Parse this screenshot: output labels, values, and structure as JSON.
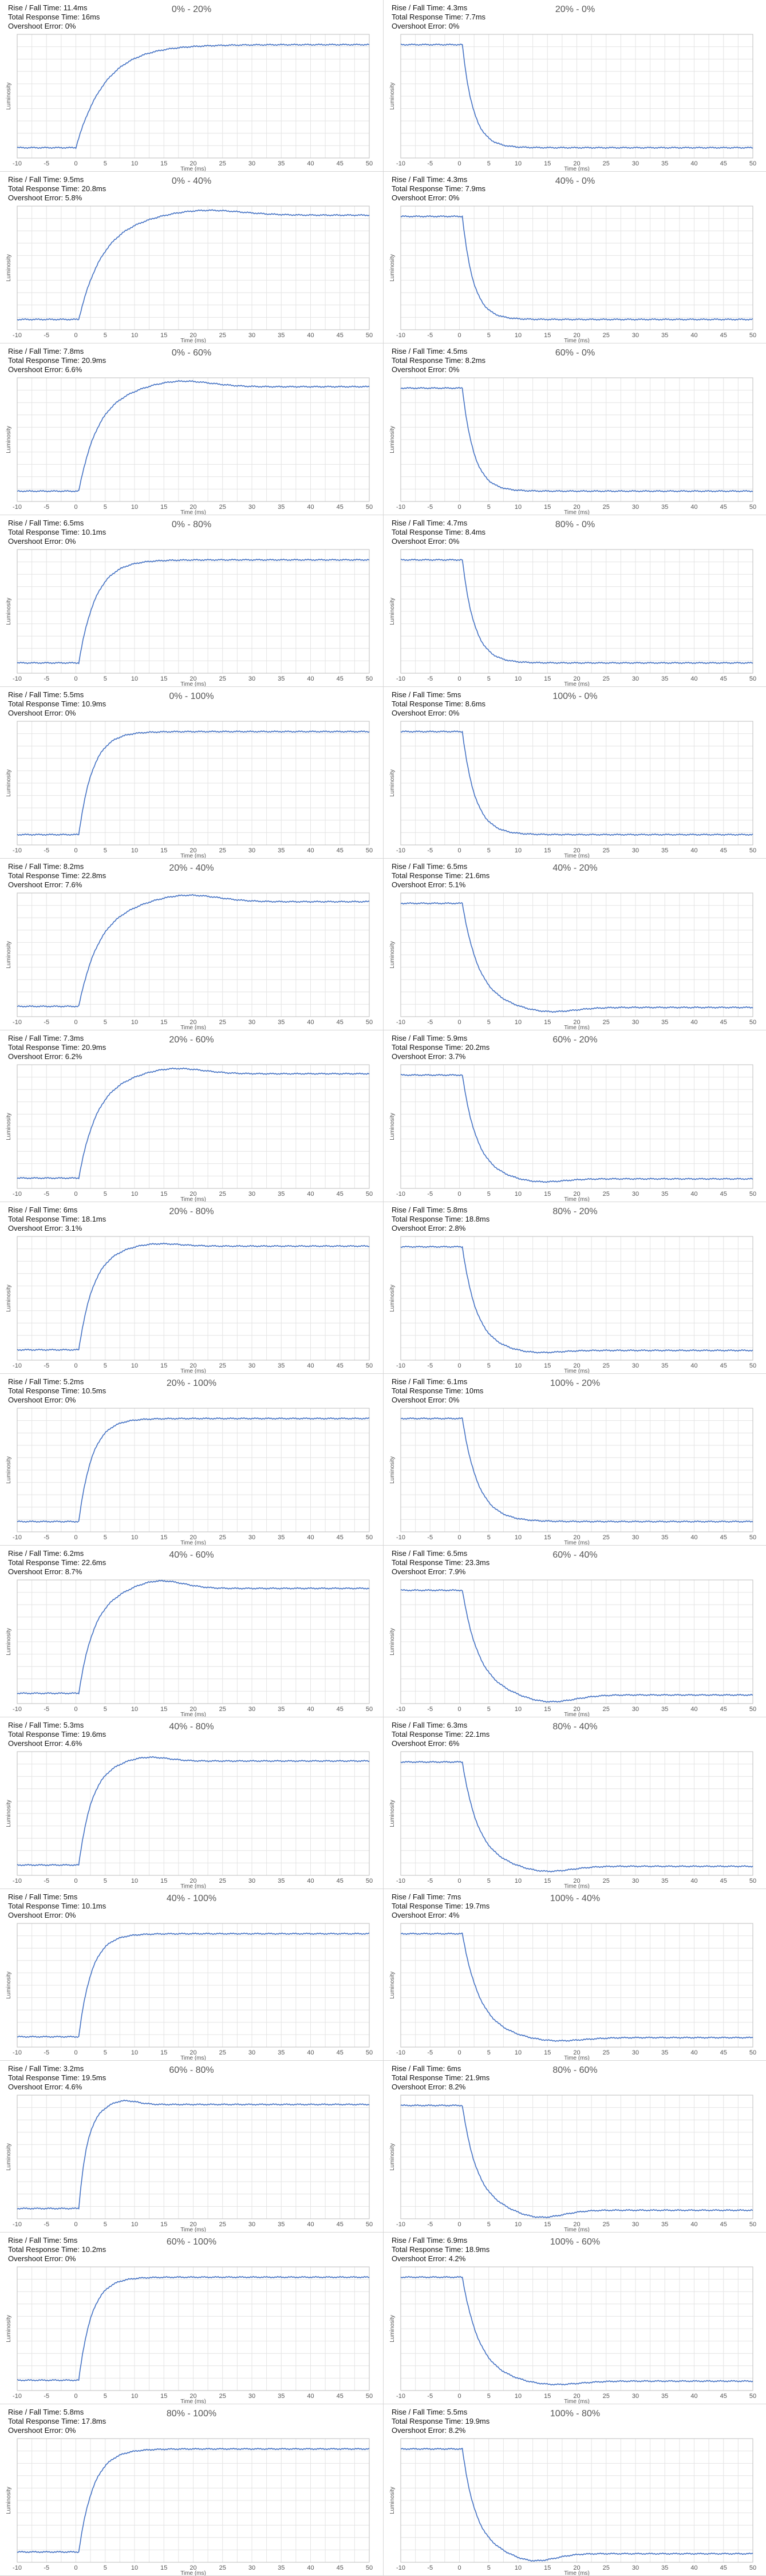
{
  "labels": {
    "rise_prefix": "Rise / Fall Time: ",
    "total_prefix": "Total Response Time: ",
    "overshoot_prefix": "Overshoot Error: "
  },
  "colors": {
    "line": "#4472c4",
    "grid": "#e4e4e4",
    "axis": "#bdbdbd"
  },
  "chart_data": [
    {
      "type": "line",
      "title": "0% - 20%",
      "rise_fall": "11.4ms",
      "total": "16ms",
      "overshoot": "0%",
      "xlabel": "Time (ms)",
      "ylabel": "Luminosity",
      "xlim": [
        -10,
        50
      ],
      "xticks": [
        -10,
        -5,
        0,
        5,
        10,
        15,
        20,
        25,
        30,
        35,
        40,
        45,
        50
      ],
      "y_start": 0.0,
      "y_end": 1.0,
      "tau_ms": 5.0,
      "delay_ms": 0,
      "overshoot_frac": 0.0
    },
    {
      "type": "line",
      "title": "20% - 0%",
      "rise_fall": "4.3ms",
      "total": "7.7ms",
      "overshoot": "0%",
      "xlabel": "Time (ms)",
      "ylabel": "Luminosity",
      "xlim": [
        -10,
        50
      ],
      "xticks": [
        -10,
        -5,
        0,
        5,
        10,
        15,
        20,
        25,
        30,
        35,
        40,
        45,
        50
      ],
      "y_start": 1.0,
      "y_end": 0.0,
      "tau_ms": 1.9,
      "delay_ms": 0.5,
      "overshoot_frac": 0.0
    },
    {
      "type": "line",
      "title": "0% - 40%",
      "rise_fall": "9.5ms",
      "total": "20.8ms",
      "overshoot": "5.8%",
      "xlabel": "Time (ms)",
      "ylabel": "Luminosity",
      "xlim": [
        -10,
        50
      ],
      "xticks": [
        -10,
        -5,
        0,
        5,
        10,
        15,
        20,
        25,
        30,
        35,
        40,
        45,
        50
      ],
      "y_start": 0.0,
      "y_end": 1.0,
      "tau_ms": 4.2,
      "delay_ms": 0.5,
      "overshoot_frac": 0.058
    },
    {
      "type": "line",
      "title": "40% - 0%",
      "rise_fall": "4.3ms",
      "total": "7.9ms",
      "overshoot": "0%",
      "xlabel": "Time (ms)",
      "ylabel": "Luminosity",
      "xlim": [
        -10,
        50
      ],
      "xticks": [
        -10,
        -5,
        0,
        5,
        10,
        15,
        20,
        25,
        30,
        35,
        40,
        45,
        50
      ],
      "y_start": 1.0,
      "y_end": 0.0,
      "tau_ms": 1.9,
      "delay_ms": 0.5,
      "overshoot_frac": 0.0
    },
    {
      "type": "line",
      "title": "0% - 60%",
      "rise_fall": "7.8ms",
      "total": "20.9ms",
      "overshoot": "6.6%",
      "xlabel": "Time (ms)",
      "ylabel": "Luminosity",
      "xlim": [
        -10,
        50
      ],
      "xticks": [
        -10,
        -5,
        0,
        5,
        10,
        15,
        20,
        25,
        30,
        35,
        40,
        45,
        50
      ],
      "y_start": 0.0,
      "y_end": 1.0,
      "tau_ms": 3.4,
      "delay_ms": 0.5,
      "overshoot_frac": 0.066
    },
    {
      "type": "line",
      "title": "60% - 0%",
      "rise_fall": "4.5ms",
      "total": "8.2ms",
      "overshoot": "0%",
      "xlabel": "Time (ms)",
      "ylabel": "Luminosity",
      "xlim": [
        -10,
        50
      ],
      "xticks": [
        -10,
        -5,
        0,
        5,
        10,
        15,
        20,
        25,
        30,
        35,
        40,
        45,
        50
      ],
      "y_start": 1.0,
      "y_end": 0.0,
      "tau_ms": 2.0,
      "delay_ms": 0.5,
      "overshoot_frac": 0.0
    },
    {
      "type": "line",
      "title": "0% - 80%",
      "rise_fall": "6.5ms",
      "total": "10.1ms",
      "overshoot": "0%",
      "xlabel": "Time (ms)",
      "ylabel": "Luminosity",
      "xlim": [
        -10,
        50
      ],
      "xticks": [
        -10,
        -5,
        0,
        5,
        10,
        15,
        20,
        25,
        30,
        35,
        40,
        45,
        50
      ],
      "y_start": 0.0,
      "y_end": 1.0,
      "tau_ms": 2.9,
      "delay_ms": 0.5,
      "overshoot_frac": 0.0
    },
    {
      "type": "line",
      "title": "80% - 0%",
      "rise_fall": "4.7ms",
      "total": "8.4ms",
      "overshoot": "0%",
      "xlabel": "Time (ms)",
      "ylabel": "Luminosity",
      "xlim": [
        -10,
        50
      ],
      "xticks": [
        -10,
        -5,
        0,
        5,
        10,
        15,
        20,
        25,
        30,
        35,
        40,
        45,
        50
      ],
      "y_start": 1.0,
      "y_end": 0.0,
      "tau_ms": 2.1,
      "delay_ms": 0.5,
      "overshoot_frac": 0.0
    },
    {
      "type": "line",
      "title": "0% - 100%",
      "rise_fall": "5.5ms",
      "total": "10.9ms",
      "overshoot": "0%",
      "xlabel": "Time (ms)",
      "ylabel": "Luminosity",
      "xlim": [
        -10,
        50
      ],
      "xticks": [
        -10,
        -5,
        0,
        5,
        10,
        15,
        20,
        25,
        30,
        35,
        40,
        45,
        50
      ],
      "y_start": 0.0,
      "y_end": 1.0,
      "tau_ms": 2.4,
      "delay_ms": 0.5,
      "overshoot_frac": 0.0
    },
    {
      "type": "line",
      "title": "100% - 0%",
      "rise_fall": "5ms",
      "total": "8.6ms",
      "overshoot": "0%",
      "xlabel": "Time (ms)",
      "ylabel": "Luminosity",
      "xlim": [
        -10,
        50
      ],
      "xticks": [
        -10,
        -5,
        0,
        5,
        10,
        15,
        20,
        25,
        30,
        35,
        40,
        45,
        50
      ],
      "y_start": 1.0,
      "y_end": 0.0,
      "tau_ms": 2.2,
      "delay_ms": 0.5,
      "overshoot_frac": 0.0
    },
    {
      "type": "line",
      "title": "20% - 40%",
      "rise_fall": "8.2ms",
      "total": "22.8ms",
      "overshoot": "7.6%",
      "xlabel": "Time (ms)",
      "ylabel": "Luminosity",
      "xlim": [
        -10,
        50
      ],
      "xticks": [
        -10,
        -5,
        0,
        5,
        10,
        15,
        20,
        25,
        30,
        35,
        40,
        45,
        50
      ],
      "y_start": 0.0,
      "y_end": 1.0,
      "tau_ms": 3.6,
      "delay_ms": 0.5,
      "overshoot_frac": 0.076
    },
    {
      "type": "line",
      "title": "40% - 20%",
      "rise_fall": "6.5ms",
      "total": "21.6ms",
      "overshoot": "5.1%",
      "xlabel": "Time (ms)",
      "ylabel": "Luminosity",
      "xlim": [
        -10,
        50
      ],
      "xticks": [
        -10,
        -5,
        0,
        5,
        10,
        15,
        20,
        25,
        30,
        35,
        40,
        45,
        50
      ],
      "y_start": 1.0,
      "y_end": 0.0,
      "tau_ms": 2.9,
      "delay_ms": 0.5,
      "overshoot_frac": 0.051
    },
    {
      "type": "line",
      "title": "20% - 60%",
      "rise_fall": "7.3ms",
      "total": "20.9ms",
      "overshoot": "6.2%",
      "xlabel": "Time (ms)",
      "ylabel": "Luminosity",
      "xlim": [
        -10,
        50
      ],
      "xticks": [
        -10,
        -5,
        0,
        5,
        10,
        15,
        20,
        25,
        30,
        35,
        40,
        45,
        50
      ],
      "y_start": 0.0,
      "y_end": 1.0,
      "tau_ms": 3.2,
      "delay_ms": 0.5,
      "overshoot_frac": 0.062
    },
    {
      "type": "line",
      "title": "60% - 20%",
      "rise_fall": "5.9ms",
      "total": "20.2ms",
      "overshoot": "3.7%",
      "xlabel": "Time (ms)",
      "ylabel": "Luminosity",
      "xlim": [
        -10,
        50
      ],
      "xticks": [
        -10,
        -5,
        0,
        5,
        10,
        15,
        20,
        25,
        30,
        35,
        40,
        45,
        50
      ],
      "y_start": 1.0,
      "y_end": 0.0,
      "tau_ms": 2.6,
      "delay_ms": 0.5,
      "overshoot_frac": 0.037
    },
    {
      "type": "line",
      "title": "20% - 80%",
      "rise_fall": "6ms",
      "total": "18.1ms",
      "overshoot": "3.1%",
      "xlabel": "Time (ms)",
      "ylabel": "Luminosity",
      "xlim": [
        -10,
        50
      ],
      "xticks": [
        -10,
        -5,
        0,
        5,
        10,
        15,
        20,
        25,
        30,
        35,
        40,
        45,
        50
      ],
      "y_start": 0.0,
      "y_end": 1.0,
      "tau_ms": 2.6,
      "delay_ms": 0.5,
      "overshoot_frac": 0.031
    },
    {
      "type": "line",
      "title": "80% - 20%",
      "rise_fall": "5.8ms",
      "total": "18.8ms",
      "overshoot": "2.8%",
      "xlabel": "Time (ms)",
      "ylabel": "Luminosity",
      "xlim": [
        -10,
        50
      ],
      "xticks": [
        -10,
        -5,
        0,
        5,
        10,
        15,
        20,
        25,
        30,
        35,
        40,
        45,
        50
      ],
      "y_start": 1.0,
      "y_end": 0.0,
      "tau_ms": 2.5,
      "delay_ms": 0.5,
      "overshoot_frac": 0.028
    },
    {
      "type": "line",
      "title": "20% - 100%",
      "rise_fall": "5.2ms",
      "total": "10.5ms",
      "overshoot": "0%",
      "xlabel": "Time (ms)",
      "ylabel": "Luminosity",
      "xlim": [
        -10,
        50
      ],
      "xticks": [
        -10,
        -5,
        0,
        5,
        10,
        15,
        20,
        25,
        30,
        35,
        40,
        45,
        50
      ],
      "y_start": 0.0,
      "y_end": 1.0,
      "tau_ms": 2.3,
      "delay_ms": 0.5,
      "overshoot_frac": 0.0
    },
    {
      "type": "line",
      "title": "100% - 20%",
      "rise_fall": "6.1ms",
      "total": "10ms",
      "overshoot": "0%",
      "xlabel": "Time (ms)",
      "ylabel": "Luminosity",
      "xlim": [
        -10,
        50
      ],
      "xticks": [
        -10,
        -5,
        0,
        5,
        10,
        15,
        20,
        25,
        30,
        35,
        40,
        45,
        50
      ],
      "y_start": 1.0,
      "y_end": 0.0,
      "tau_ms": 2.7,
      "delay_ms": 0.5,
      "overshoot_frac": 0.0
    },
    {
      "type": "line",
      "title": "40% - 60%",
      "rise_fall": "6.2ms",
      "total": "22.6ms",
      "overshoot": "8.7%",
      "xlabel": "Time (ms)",
      "ylabel": "Luminosity",
      "xlim": [
        -10,
        50
      ],
      "xticks": [
        -10,
        -5,
        0,
        5,
        10,
        15,
        20,
        25,
        30,
        35,
        40,
        45,
        50
      ],
      "y_start": 0.0,
      "y_end": 1.0,
      "tau_ms": 2.7,
      "delay_ms": 0.5,
      "overshoot_frac": 0.087
    },
    {
      "type": "line",
      "title": "60% - 40%",
      "rise_fall": "6.5ms",
      "total": "23.3ms",
      "overshoot": "7.9%",
      "xlabel": "Time (ms)",
      "ylabel": "Luminosity",
      "xlim": [
        -10,
        50
      ],
      "xticks": [
        -10,
        -5,
        0,
        5,
        10,
        15,
        20,
        25,
        30,
        35,
        40,
        45,
        50
      ],
      "y_start": 1.0,
      "y_end": 0.0,
      "tau_ms": 2.9,
      "delay_ms": 0.5,
      "overshoot_frac": 0.079
    },
    {
      "type": "line",
      "title": "40% - 80%",
      "rise_fall": "5.3ms",
      "total": "19.6ms",
      "overshoot": "4.6%",
      "xlabel": "Time (ms)",
      "ylabel": "Luminosity",
      "xlim": [
        -10,
        50
      ],
      "xticks": [
        -10,
        -5,
        0,
        5,
        10,
        15,
        20,
        25,
        30,
        35,
        40,
        45,
        50
      ],
      "y_start": 0.0,
      "y_end": 1.0,
      "tau_ms": 2.3,
      "delay_ms": 0.5,
      "overshoot_frac": 0.046
    },
    {
      "type": "line",
      "title": "80% - 40%",
      "rise_fall": "6.3ms",
      "total": "22.1ms",
      "overshoot": "6%",
      "xlabel": "Time (ms)",
      "ylabel": "Luminosity",
      "xlim": [
        -10,
        50
      ],
      "xticks": [
        -10,
        -5,
        0,
        5,
        10,
        15,
        20,
        25,
        30,
        35,
        40,
        45,
        50
      ],
      "y_start": 1.0,
      "y_end": 0.0,
      "tau_ms": 2.8,
      "delay_ms": 0.5,
      "overshoot_frac": 0.06
    },
    {
      "type": "line",
      "title": "40% - 100%",
      "rise_fall": "5ms",
      "total": "10.1ms",
      "overshoot": "0%",
      "xlabel": "Time (ms)",
      "ylabel": "Luminosity",
      "xlim": [
        -10,
        50
      ],
      "xticks": [
        -10,
        -5,
        0,
        5,
        10,
        15,
        20,
        25,
        30,
        35,
        40,
        45,
        50
      ],
      "y_start": 0.0,
      "y_end": 1.0,
      "tau_ms": 2.2,
      "delay_ms": 0.5,
      "overshoot_frac": 0.0
    },
    {
      "type": "line",
      "title": "100% - 40%",
      "rise_fall": "7ms",
      "total": "19.7ms",
      "overshoot": "4%",
      "xlabel": "Time (ms)",
      "ylabel": "Luminosity",
      "xlim": [
        -10,
        50
      ],
      "xticks": [
        -10,
        -5,
        0,
        5,
        10,
        15,
        20,
        25,
        30,
        35,
        40,
        45,
        50
      ],
      "y_start": 1.0,
      "y_end": 0.0,
      "tau_ms": 3.1,
      "delay_ms": 0.5,
      "overshoot_frac": 0.04
    },
    {
      "type": "line",
      "title": "60% - 80%",
      "rise_fall": "3.2ms",
      "total": "19.5ms",
      "overshoot": "4.6%",
      "xlabel": "Time (ms)",
      "ylabel": "Luminosity",
      "xlim": [
        -10,
        50
      ],
      "xticks": [
        -10,
        -5,
        0,
        5,
        10,
        15,
        20,
        25,
        30,
        35,
        40,
        45,
        50
      ],
      "y_start": 0.0,
      "y_end": 1.0,
      "tau_ms": 1.5,
      "delay_ms": 0.5,
      "overshoot_frac": 0.046
    },
    {
      "type": "line",
      "title": "80% - 60%",
      "rise_fall": "6ms",
      "total": "21.9ms",
      "overshoot": "8.2%",
      "xlabel": "Time (ms)",
      "ylabel": "Luminosity",
      "xlim": [
        -10,
        50
      ],
      "xticks": [
        -10,
        -5,
        0,
        5,
        10,
        15,
        20,
        25,
        30,
        35,
        40,
        45,
        50
      ],
      "y_start": 1.0,
      "y_end": 0.0,
      "tau_ms": 2.6,
      "delay_ms": 0.5,
      "overshoot_frac": 0.082
    },
    {
      "type": "line",
      "title": "60% - 100%",
      "rise_fall": "5ms",
      "total": "10.2ms",
      "overshoot": "0%",
      "xlabel": "Time (ms)",
      "ylabel": "Luminosity",
      "xlim": [
        -10,
        50
      ],
      "xticks": [
        -10,
        -5,
        0,
        5,
        10,
        15,
        20,
        25,
        30,
        35,
        40,
        45,
        50
      ],
      "y_start": 0.0,
      "y_end": 1.0,
      "tau_ms": 2.2,
      "delay_ms": 0.5,
      "overshoot_frac": 0.0
    },
    {
      "type": "line",
      "title": "100% - 60%",
      "rise_fall": "6.9ms",
      "total": "18.9ms",
      "overshoot": "4.2%",
      "xlabel": "Time (ms)",
      "ylabel": "Luminosity",
      "xlim": [
        -10,
        50
      ],
      "xticks": [
        -10,
        -5,
        0,
        5,
        10,
        15,
        20,
        25,
        30,
        35,
        40,
        45,
        50
      ],
      "y_start": 1.0,
      "y_end": 0.0,
      "tau_ms": 3.0,
      "delay_ms": 0.5,
      "overshoot_frac": 0.042
    },
    {
      "type": "line",
      "title": "80% - 100%",
      "rise_fall": "5.8ms",
      "total": "17.8ms",
      "overshoot": "0%",
      "xlabel": "Time (ms)",
      "ylabel": "Luminosity",
      "xlim": [
        -10,
        50
      ],
      "xticks": [
        -10,
        -5,
        0,
        5,
        10,
        15,
        20,
        25,
        30,
        35,
        40,
        45,
        50
      ],
      "y_start": 0.0,
      "y_end": 1.0,
      "tau_ms": 2.5,
      "delay_ms": 0.5,
      "overshoot_frac": 0.0
    },
    {
      "type": "line",
      "title": "100% - 80%",
      "rise_fall": "5.5ms",
      "total": "19.9ms",
      "overshoot": "8.2%",
      "xlabel": "Time (ms)",
      "ylabel": "Luminosity",
      "xlim": [
        -10,
        50
      ],
      "xticks": [
        -10,
        -5,
        0,
        5,
        10,
        15,
        20,
        25,
        30,
        35,
        40,
        45,
        50
      ],
      "y_start": 1.0,
      "y_end": 0.0,
      "tau_ms": 2.4,
      "delay_ms": 0.5,
      "overshoot_frac": 0.082
    }
  ]
}
